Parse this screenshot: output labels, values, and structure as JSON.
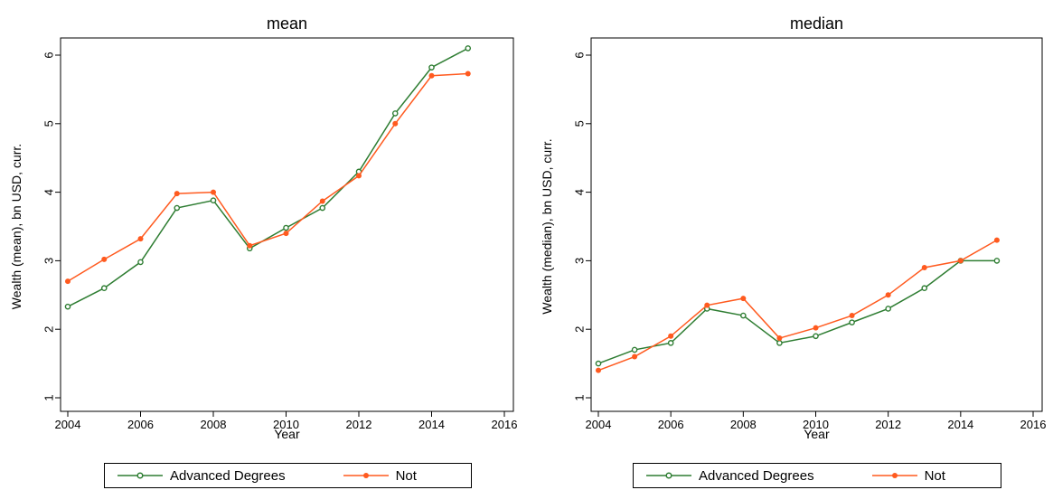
{
  "colors": {
    "advanced": "#2E7D32",
    "not": "#FF5A1F"
  },
  "chart_data": [
    {
      "type": "line",
      "title": "mean",
      "xlabel": "Year",
      "ylabel": "Wealth (mean), bn USD, curr.",
      "xlim": [
        2004,
        2016
      ],
      "ylim": [
        1,
        6
      ],
      "xticks": [
        "2004",
        "2006",
        "2008",
        "2010",
        "2012",
        "2014",
        "2016"
      ],
      "yticks": [
        "1",
        "2",
        "3",
        "4",
        "5",
        "6"
      ],
      "x": [
        2004,
        2005,
        2006,
        2007,
        2008,
        2009,
        2010,
        2011,
        2012,
        2013,
        2014,
        2015
      ],
      "grid": false,
      "legend_placement": "bottom",
      "series": [
        {
          "name": "Advanced Degrees",
          "marker": "hollow-circle",
          "values": [
            2.33,
            2.6,
            2.98,
            3.77,
            3.88,
            3.18,
            3.48,
            3.77,
            4.3,
            5.15,
            5.82,
            6.1
          ]
        },
        {
          "name": "Not",
          "marker": "filled-circle",
          "values": [
            2.7,
            3.02,
            3.32,
            3.98,
            4.0,
            3.22,
            3.4,
            3.87,
            4.24,
            5.0,
            5.7,
            5.73
          ]
        }
      ]
    },
    {
      "type": "line",
      "title": "median",
      "xlabel": "Year",
      "ylabel": "Wealth (median), bn USD, curr.",
      "xlim": [
        2004,
        2016
      ],
      "ylim": [
        1,
        6
      ],
      "xticks": [
        "2004",
        "2006",
        "2008",
        "2010",
        "2012",
        "2014",
        "2016"
      ],
      "yticks": [
        "1",
        "2",
        "3",
        "4",
        "5",
        "6"
      ],
      "x": [
        2004,
        2005,
        2006,
        2007,
        2008,
        2009,
        2010,
        2011,
        2012,
        2013,
        2014,
        2015
      ],
      "grid": false,
      "legend_placement": "bottom",
      "series": [
        {
          "name": "Advanced Degrees",
          "marker": "hollow-circle",
          "values": [
            1.5,
            1.7,
            1.8,
            2.3,
            2.2,
            1.8,
            1.9,
            2.1,
            2.3,
            2.6,
            3.0,
            3.0
          ]
        },
        {
          "name": "Not",
          "marker": "filled-circle",
          "values": [
            1.4,
            1.6,
            1.9,
            2.35,
            2.45,
            1.87,
            2.02,
            2.2,
            2.5,
            2.9,
            3.0,
            3.3
          ]
        }
      ]
    }
  ]
}
